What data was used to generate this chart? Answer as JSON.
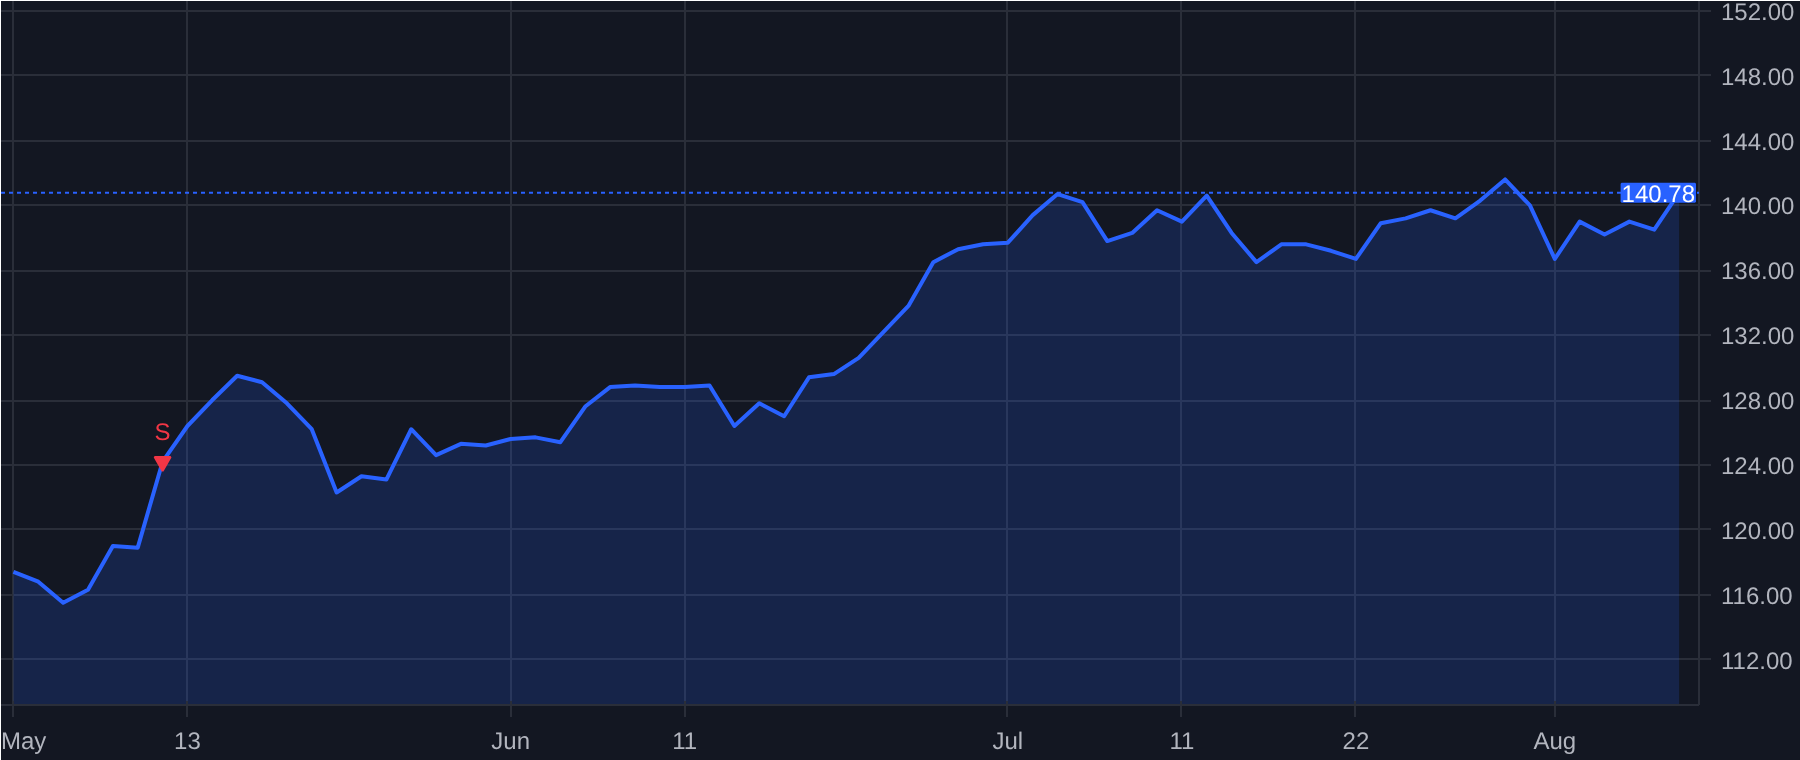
{
  "chart_data": {
    "type": "area",
    "categories": [
      "May",
      null,
      null,
      null,
      null,
      null,
      null,
      "13",
      null,
      null,
      null,
      null,
      null,
      null,
      null,
      null,
      null,
      null,
      null,
      null,
      "Jun",
      null,
      null,
      null,
      null,
      null,
      null,
      "11",
      null,
      null,
      null,
      null,
      null,
      null,
      null,
      null,
      null,
      null,
      null,
      null,
      "Jul",
      null,
      null,
      null,
      null,
      null,
      null,
      "11",
      null,
      null,
      null,
      null,
      null,
      null,
      "22",
      null,
      null,
      null,
      null,
      null,
      null,
      null,
      "Aug",
      null,
      null,
      null,
      null,
      null
    ],
    "series": [
      {
        "color": "#2962ff",
        "values": [
          117.4,
          116.8,
          115.5,
          116.3,
          119.0,
          118.9,
          124.2,
          126.4,
          128.0,
          129.5,
          129.1,
          127.8,
          126.2,
          122.3,
          123.3,
          123.1,
          126.2,
          124.6,
          125.3,
          125.2,
          125.6,
          125.7,
          125.4,
          127.6,
          128.8,
          128.9,
          128.8,
          128.8,
          128.9,
          126.4,
          127.8,
          127.0,
          129.4,
          129.6,
          130.6,
          132.2,
          133.8,
          136.5,
          137.3,
          137.6,
          137.7,
          139.4,
          140.7,
          140.2,
          137.8,
          138.3,
          139.7,
          139.0,
          140.6,
          138.3,
          136.5,
          137.6,
          137.6,
          137.2,
          136.7,
          138.9,
          139.2,
          139.7,
          139.2,
          140.3,
          141.6,
          140.0,
          136.7,
          139.0,
          138.2,
          139.0,
          138.5,
          140.78
        ]
      }
    ],
    "ylim": [
      109.2,
      152.6
    ],
    "yticks": [
      {
        "value": 112,
        "label": "112.00"
      },
      {
        "value": 116,
        "label": "116.00"
      },
      {
        "value": 120,
        "label": "120.00"
      },
      {
        "value": 124,
        "label": "124.00"
      },
      {
        "value": 128,
        "label": "128.00"
      },
      {
        "value": 132,
        "label": "132.00"
      },
      {
        "value": 136,
        "label": "136.00"
      },
      {
        "value": 140,
        "label": "140.00"
      },
      {
        "value": 144,
        "label": "144.00"
      },
      {
        "value": 148,
        "label": "148.00"
      },
      {
        "value": 152,
        "label": "152.00"
      }
    ],
    "ref_lines": [
      {
        "axis": "y",
        "value": 140.78,
        "label": "140.78",
        "color": "#2962ff",
        "line_style": "dotted"
      }
    ],
    "annotations": [
      {
        "text": "S",
        "y": 124.2
      }
    ],
    "grid": true
  }
}
